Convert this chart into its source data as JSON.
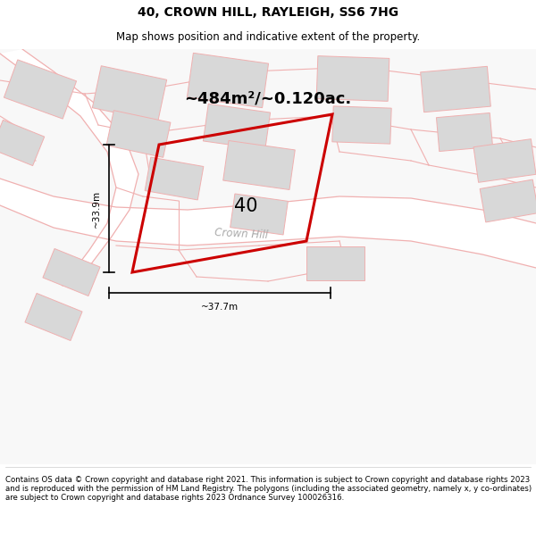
{
  "title": "40, CROWN HILL, RAYLEIGH, SS6 7HG",
  "subtitle": "Map shows position and indicative extent of the property.",
  "area_label": "~484m²/~0.120ac.",
  "number_label": "40",
  "dim_width": "~37.7m",
  "dim_height": "~33.9m",
  "road_label": "Crown Hill",
  "footer": "Contains OS data © Crown copyright and database right 2021. This information is subject to Crown copyright and database rights 2023 and is reproduced with the permission of HM Land Registry. The polygons (including the associated geometry, namely x, y co-ordinates) are subject to Crown copyright and database rights 2023 Ordnance Survey 100026316.",
  "map_bg": "#ffffff",
  "polygon_color": "#cc0000",
  "polygon_fill": "none",
  "building_fill": "#d8d8d8",
  "building_edge": "#f0b0b0",
  "line_color": "#f0b0b0",
  "title_fontsize": 10,
  "subtitle_fontsize": 8.5,
  "area_fontsize": 13,
  "number_fontsize": 15,
  "footer_fontsize": 6.2,
  "dim_fontsize": 7.5,
  "road_fontsize": 8.5
}
